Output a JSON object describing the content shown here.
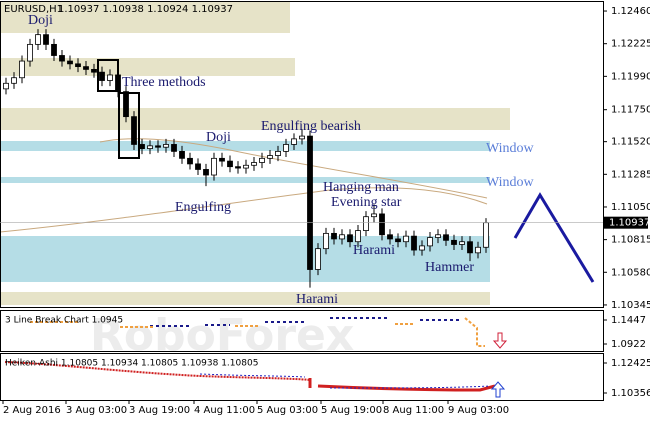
{
  "chart_data": {
    "type": "candlestick",
    "title": "EURUSD,H1",
    "header_quote": "1.10937 1.10938 1.10924 1.10937",
    "watermark": "RoboForex",
    "ylim": [
      1.10323,
      1.12525
    ],
    "yticks": [
      {
        "value": 1.1246,
        "label": "1.12460"
      },
      1.12225,
      {
        "value": 1.1199,
        "label": "1.11990"
      },
      {
        "value": 1.1175,
        "label": "1.11750"
      },
      {
        "value": 1.1152,
        "label": "1.11520"
      },
      1.11285,
      {
        "value": 1.1105,
        "label": "1.11050"
      },
      1.10815,
      {
        "value": 1.1058,
        "label": "1.10580"
      },
      1.10345
    ],
    "last_price": 1.10937,
    "up_color": "#ffffff",
    "down_color": "#000000",
    "open": [
      1.119,
      1.1194,
      1.1198,
      1.121,
      1.1222,
      1.1229,
      1.1222,
      1.1214,
      1.121,
      1.1208,
      1.1206,
      1.1204,
      1.1202,
      1.1196,
      1.12,
      1.1188,
      1.117,
      1.115,
      1.1147,
      1.1149,
      1.1148,
      1.115,
      1.1145,
      1.114,
      1.1136,
      1.1132,
      1.1128,
      1.114,
      1.1138,
      1.1134,
      1.1133,
      1.1135,
      1.1137,
      1.114,
      1.1142,
      1.1145,
      1.115,
      1.1154,
      1.1156,
      1.106,
      1.1075,
      1.1086,
      1.1082,
      1.1085,
      1.108,
      1.1088,
      1.1098,
      1.11,
      1.1085,
      1.1082,
      1.108,
      1.1084,
      1.1074,
      1.1077,
      1.1083,
      1.1085,
      1.1081,
      1.1078,
      1.108,
      1.1072,
      1.1076
    ],
    "high": [
      1.1198,
      1.1202,
      1.1214,
      1.1226,
      1.1233,
      1.1233,
      1.1226,
      1.1218,
      1.1214,
      1.1212,
      1.121,
      1.1208,
      1.1206,
      1.1204,
      1.1204,
      1.1192,
      1.1174,
      1.1154,
      1.1153,
      1.1153,
      1.1154,
      1.1154,
      1.1149,
      1.1144,
      1.114,
      1.1136,
      1.1144,
      1.1144,
      1.1142,
      1.1138,
      1.1139,
      1.1141,
      1.1144,
      1.1146,
      1.1149,
      1.1154,
      1.1158,
      1.1161,
      1.116,
      1.1079,
      1.109,
      1.109,
      1.1089,
      1.1089,
      1.1092,
      1.1102,
      1.1107,
      1.1104,
      1.1089,
      1.1086,
      1.1088,
      1.1088,
      1.1081,
      1.1087,
      1.1089,
      1.1089,
      1.1085,
      1.1084,
      1.1084,
      1.108,
      1.1097
    ],
    "low": [
      1.1186,
      1.119,
      1.1194,
      1.1206,
      1.1218,
      1.1218,
      1.121,
      1.1206,
      1.1204,
      1.1202,
      1.12,
      1.1198,
      1.1192,
      1.1192,
      1.1184,
      1.1166,
      1.1146,
      1.1143,
      1.1143,
      1.1144,
      1.1144,
      1.1141,
      1.1136,
      1.1132,
      1.1128,
      1.112,
      1.1124,
      1.1134,
      1.113,
      1.1129,
      1.1129,
      1.1131,
      1.1133,
      1.1136,
      1.1138,
      1.1141,
      1.1146,
      1.115,
      1.1047,
      1.1056,
      1.1071,
      1.1078,
      1.1078,
      1.1076,
      1.1076,
      1.1084,
      1.1094,
      1.1081,
      1.1078,
      1.1076,
      1.1076,
      1.107,
      1.107,
      1.1073,
      1.1079,
      1.1077,
      1.1074,
      1.1074,
      1.1066,
      1.1068,
      1.1072
    ],
    "close": [
      1.1194,
      1.1198,
      1.121,
      1.1222,
      1.1229,
      1.1222,
      1.1214,
      1.121,
      1.1208,
      1.1206,
      1.1204,
      1.1202,
      1.1196,
      1.12,
      1.1188,
      1.117,
      1.115,
      1.1147,
      1.1149,
      1.1148,
      1.115,
      1.1145,
      1.114,
      1.1136,
      1.1132,
      1.1128,
      1.114,
      1.1138,
      1.1134,
      1.1133,
      1.1135,
      1.1137,
      1.114,
      1.1142,
      1.1145,
      1.115,
      1.1154,
      1.1156,
      1.106,
      1.1075,
      1.1086,
      1.1082,
      1.1085,
      1.108,
      1.1088,
      1.1098,
      1.11,
      1.1085,
      1.1082,
      1.108,
      1.1084,
      1.1074,
      1.1077,
      1.1083,
      1.1085,
      1.1081,
      1.1078,
      1.108,
      1.1072,
      1.1076,
      1.10937
    ],
    "annotations": [
      "Doji",
      "Three methods",
      "Doji",
      "Engulfing bearish",
      "Window",
      "Window",
      "Hanging man",
      "Evening star",
      "Engulfing",
      "Harami",
      "Hammer",
      "Harami"
    ],
    "xtick_labels": [
      "2 Aug 2016",
      "3 Aug 03:00",
      "3 Aug 19:00",
      "4 Aug 11:00",
      "5 Aug 03:00",
      "5 Aug 19:00",
      "8 Aug 11:00",
      "9 Aug 03:00"
    ],
    "panels": [
      {
        "title": "3 Line Break Chart 1.0945",
        "yticks": [
          1.1447,
          1.0922
        ]
      },
      {
        "title": "Heiken-Ashi 1.10805 1.10934 1.10805 1.10938 1.10805",
        "yticks": [
          1.12425,
          1.10356
        ]
      }
    ]
  }
}
